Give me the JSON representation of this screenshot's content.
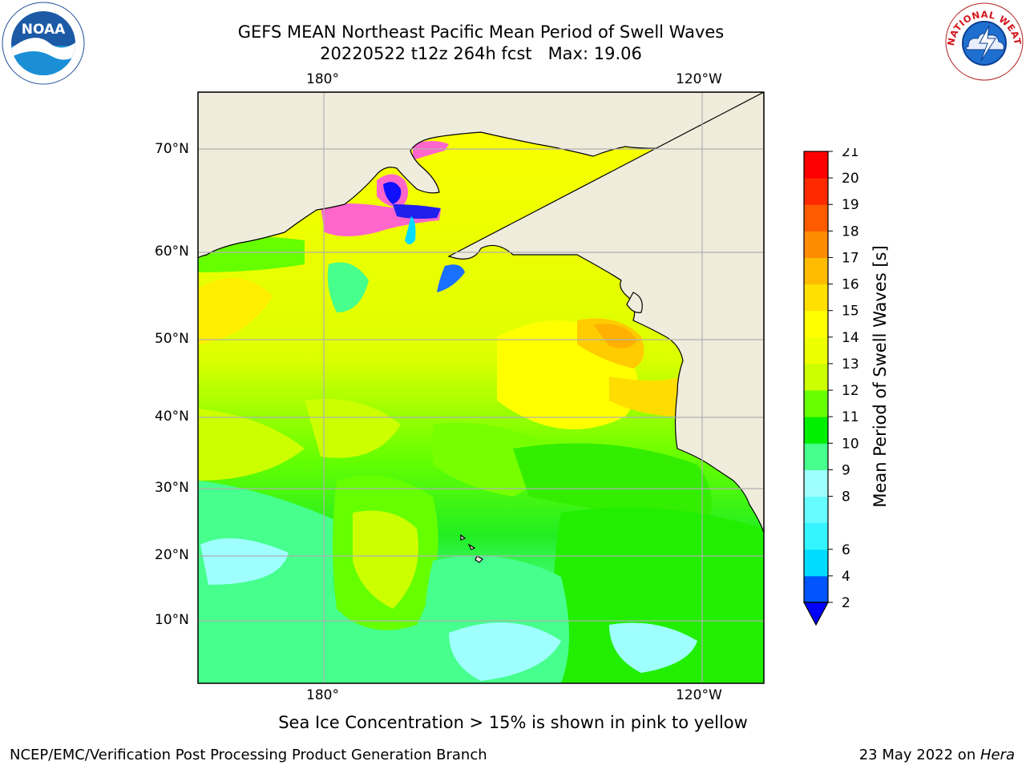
{
  "title": {
    "line1": "GEFS MEAN Northeast Pacific Mean Period of Swell Waves",
    "line2": "20220522 t12z 264h fcst   Max: 19.06"
  },
  "logos": {
    "left": "NOAA",
    "right": "NATIONAL WEATHER SERVICE",
    "left_icon": "noaa-logo-icon",
    "right_icon": "nws-logo-icon"
  },
  "map": {
    "projection": "lat-lon",
    "lon_labels_top": [
      "180°",
      "120°W"
    ],
    "lon_labels_bottom": [
      "180°",
      "120°W"
    ],
    "lat_labels": [
      "70°N",
      "60°N",
      "50°N",
      "40°N",
      "30°N",
      "20°N",
      "10°N"
    ],
    "land_color": "#efecdc",
    "ocean_color": "#ffffff",
    "grid_color": "#b0b0b0"
  },
  "colorbar": {
    "label": "Mean Period of Swell Waves [s]",
    "levels": [
      "2",
      "4",
      "6",
      "7",
      "8",
      "9",
      "10",
      "11",
      "12",
      "13",
      "14",
      "15",
      "16",
      "17",
      "18",
      "19",
      "20",
      "21"
    ],
    "tick_labels": [
      "2",
      "4",
      "6",
      "8",
      "9",
      "10",
      "11",
      "12",
      "13",
      "14",
      "15",
      "16",
      "17",
      "18",
      "19",
      "20",
      "21"
    ],
    "colors": [
      "#0055ff",
      "#00dcff",
      "#33f4ff",
      "#66fbff",
      "#9fffff",
      "#46ff8c",
      "#00ee00",
      "#66ff00",
      "#ccff00",
      "#eeff00",
      "#ffff00",
      "#ffe000",
      "#ffbb00",
      "#ff8c00",
      "#ff5a00",
      "#ff2a00",
      "#ff0000"
    ],
    "under_color": "#0000ff",
    "extend": "min"
  },
  "bottom_note": "Sea Ice Concentration > 15% is shown in pink to yellow",
  "footer": {
    "left": "NCEP/EMC/Verification Post Processing Product Generation Branch",
    "right_prefix": "23 May 2022 on ",
    "right_machine": "Hera"
  }
}
